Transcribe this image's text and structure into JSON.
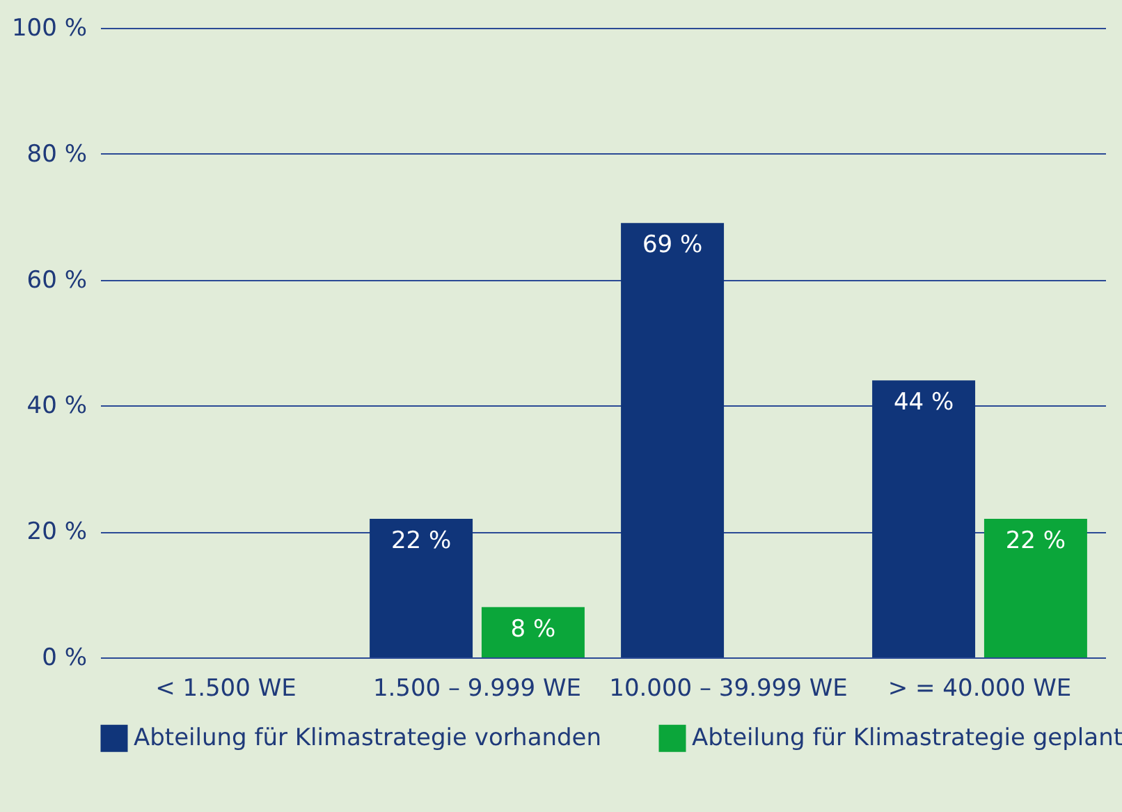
{
  "chart_data": {
    "type": "bar",
    "categories": [
      "< 1.500 WE",
      "1.500 – 9.999 WE",
      "10.000 – 39.999 WE",
      "> = 40.000 WE"
    ],
    "series": [
      {
        "name": "Abteilung für Klimastrategie vorhanden",
        "color": "#10357a",
        "values": [
          null,
          22,
          69,
          44
        ],
        "value_labels": [
          null,
          "22 %",
          "69 %",
          "44 %"
        ]
      },
      {
        "name": "Abteilung für Klimastrategie geplant",
        "color": "#0ba63a",
        "values": [
          null,
          8,
          null,
          22
        ],
        "value_labels": [
          null,
          "8 %",
          null,
          "22 %"
        ]
      }
    ],
    "ylim": [
      0,
      100
    ],
    "yticks": [
      {
        "value": 0,
        "label": "0 %"
      },
      {
        "value": 20,
        "label": "20 %"
      },
      {
        "value": 40,
        "label": "40 %"
      },
      {
        "value": 60,
        "label": "60 %"
      },
      {
        "value": 80,
        "label": "80 %"
      },
      {
        "value": 100,
        "label": "100 %"
      }
    ],
    "grid": "y",
    "legend": "bottom"
  }
}
